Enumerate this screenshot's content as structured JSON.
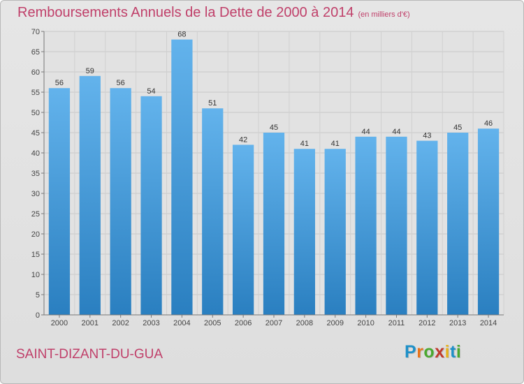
{
  "title": "Remboursements Annuels de la Dette de 2000 à 2014",
  "subtitle": "(en milliers d'€)",
  "place": "SAINT-DIZANT-DU-GUA",
  "logo": {
    "letters": [
      "P",
      "r",
      "o",
      "x",
      "i",
      "t",
      "i"
    ],
    "colors": [
      "#1e90c8",
      "#e8731a",
      "#4aa830",
      "#c0392b",
      "#e8b21a",
      "#1e90c8",
      "#4aa830"
    ]
  },
  "colors": {
    "bar_top": "#63b3ec",
    "bar_bottom": "#2a7fc0",
    "title": "#c0406a"
  },
  "chart_data": {
    "type": "bar",
    "categories": [
      "2000",
      "2001",
      "2002",
      "2003",
      "2004",
      "2005",
      "2006",
      "2007",
      "2008",
      "2009",
      "2010",
      "2011",
      "2012",
      "2013",
      "2014"
    ],
    "values": [
      56,
      59,
      56,
      54,
      68,
      51,
      42,
      45,
      41,
      41,
      44,
      44,
      43,
      45,
      46
    ],
    "ylim": [
      0,
      70
    ],
    "yticks": [
      0,
      5,
      10,
      15,
      20,
      25,
      30,
      35,
      40,
      45,
      50,
      55,
      60,
      65,
      70
    ],
    "grid": true,
    "legend": "none"
  }
}
